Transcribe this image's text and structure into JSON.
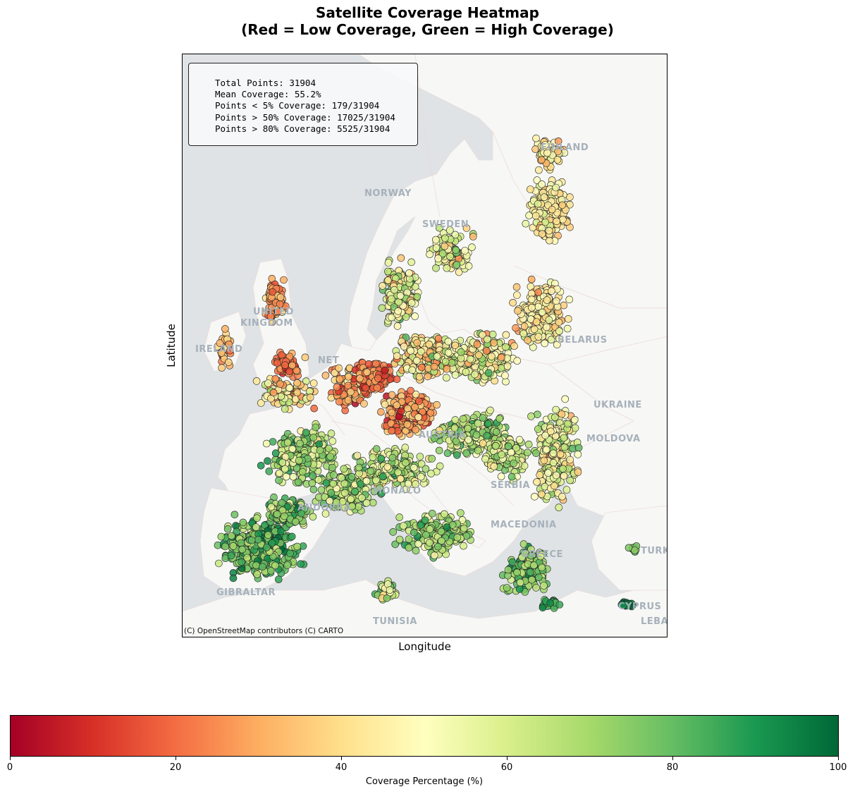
{
  "title": {
    "line1": "Satellite Coverage Heatmap",
    "line2": "(Red = Low Coverage, Green = High Coverage)"
  },
  "axes": {
    "xlabel": "Longitude",
    "ylabel": "Latitude"
  },
  "stats": {
    "total": "Total Points: 31904",
    "mean": "Mean Coverage: 55.2%",
    "lt5": "Points < 5% Coverage: 179/31904",
    "gt50": "Points > 50% Coverage: 17025/31904",
    "gt80": "Points > 80% Coverage: 5525/31904"
  },
  "attribution": "(C) OpenStreetMap contributors (C) CARTO",
  "basemap_labels": [
    "NORWAY",
    "SWEDEN",
    "FINLAND",
    "UNITED",
    "KINGDOM",
    "IRELAND",
    "NETHERLANDS",
    "BELARUS",
    "UKRAINE",
    "AUSTRIA",
    "MOLDOVA",
    "SERBIA",
    "MONACO",
    "ANDORRA",
    "MACEDONIA",
    "GREECE",
    "GIBRALTAR",
    "TUNISIA",
    "TURKEY",
    "CYPRUS",
    "LEBANON"
  ],
  "colorbar": {
    "label": "Coverage Percentage (%)",
    "ticks": [
      0,
      20,
      40,
      60,
      80,
      100
    ],
    "colormap": "RdYlGn",
    "range": [
      0,
      100
    ]
  },
  "colors": {
    "sea": "#dfe3e5",
    "land": "#f7f7f5",
    "label": "#a6b1bb",
    "low": "#a50026",
    "mid": "#ffffbf",
    "high": "#006837"
  }
}
